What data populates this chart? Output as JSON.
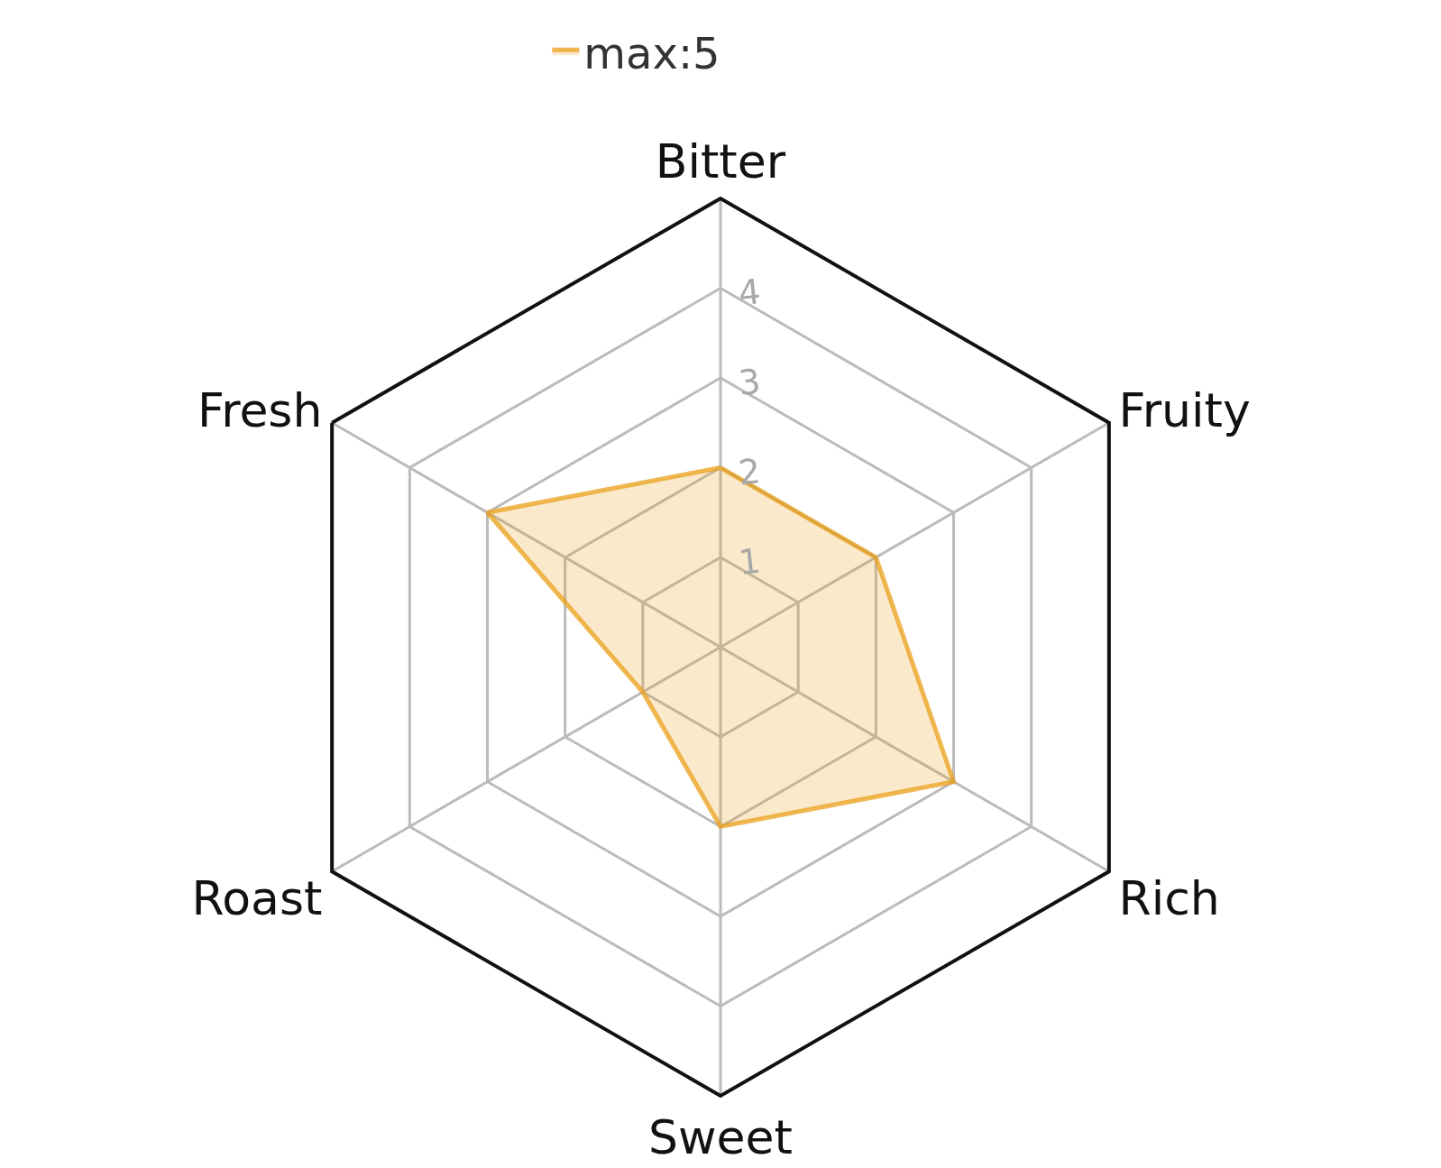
{
  "chart_data": {
    "type": "radar",
    "categories": [
      "Bitter",
      "Fruity",
      "Rich",
      "Sweet",
      "Roast",
      "Fresh"
    ],
    "series": [
      {
        "name": "max:5",
        "color": "#e99c11",
        "values": [
          2,
          2,
          3,
          2,
          1,
          3
        ]
      }
    ],
    "ylim": [
      0,
      5
    ],
    "yticks": [
      1,
      2,
      3,
      4
    ],
    "grid": true,
    "legend": "top",
    "marker": "none",
    "line_style": "solid"
  }
}
